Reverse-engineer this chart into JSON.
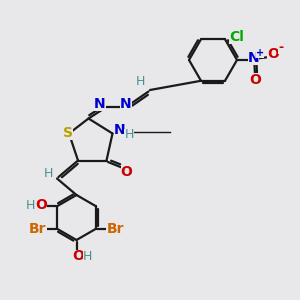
{
  "bg_color": "#e8e8ea",
  "bond_color": "#1a1a1a",
  "bond_width": 1.6,
  "elements": {
    "S": {
      "color": "#b8a000",
      "fontsize": 10,
      "fontweight": "bold"
    },
    "N": {
      "color": "#0000cc",
      "fontsize": 10,
      "fontweight": "bold"
    },
    "O": {
      "color": "#cc0000",
      "fontsize": 10,
      "fontweight": "bold"
    },
    "Cl": {
      "color": "#00aa00",
      "fontsize": 10,
      "fontweight": "bold"
    },
    "Br": {
      "color": "#cc6600",
      "fontsize": 10,
      "fontweight": "bold"
    },
    "H": {
      "color": "#4a9090",
      "fontsize": 9,
      "fontweight": "normal"
    },
    "plus": {
      "color": "#0000cc",
      "fontsize": 7
    },
    "minus": {
      "color": "#cc0000",
      "fontsize": 9
    }
  }
}
